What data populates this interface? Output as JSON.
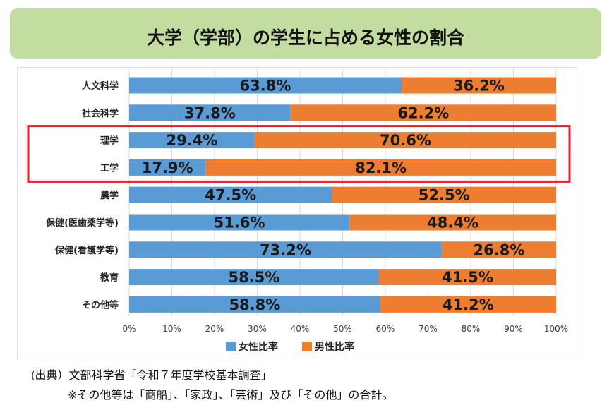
{
  "title": "大学（学部）の学生に占める女性の割合",
  "source": {
    "open_paren": "(",
    "label": "出典）",
    "text": "文部科学省「令和７年度学校基本調査」"
  },
  "note": "※その他等は「商船」、「家政」、「芸術」及び「その他」の合計。",
  "colors": {
    "female": "#5b9bd5",
    "male": "#ed7d31",
    "highlight": "#ee1c25",
    "title_bg": "#c3dca0"
  },
  "chart_data": {
    "type": "bar",
    "orientation": "horizontal",
    "stacked": true,
    "percent_stacked": true,
    "categories": [
      "人文科学",
      "社会科学",
      "理学",
      "工学",
      "農学",
      "保健(医歯薬学等)",
      "保健(看護学等)",
      "教育",
      "その他等"
    ],
    "series": [
      {
        "name": "女性比率",
        "values": [
          63.8,
          37.8,
          29.4,
          17.9,
          47.5,
          51.6,
          73.2,
          58.5,
          58.8
        ]
      },
      {
        "name": "男性比率",
        "values": [
          36.2,
          62.2,
          70.6,
          82.1,
          52.5,
          48.4,
          26.8,
          41.5,
          41.2
        ]
      }
    ],
    "data_labels": {
      "女性比率": [
        "63.8%",
        "37.8%",
        "29.4%",
        "17.9%",
        "47.5%",
        "51.6%",
        "73.2%",
        "58.5%",
        "58.8%"
      ],
      "男性比率": [
        "36.2%",
        "62.2%",
        "70.6%",
        "82.1%",
        "52.5%",
        "48.4%",
        "26.8%",
        "41.5%",
        "41.2%"
      ]
    },
    "x_ticks": [
      "0%",
      "10%",
      "20%",
      "30%",
      "40%",
      "50%",
      "60%",
      "70%",
      "80%",
      "90%",
      "100%"
    ],
    "xlim": [
      0,
      100
    ],
    "grid": true,
    "legend_position": "bottom",
    "highlighted_categories": [
      "理学",
      "工学"
    ]
  }
}
